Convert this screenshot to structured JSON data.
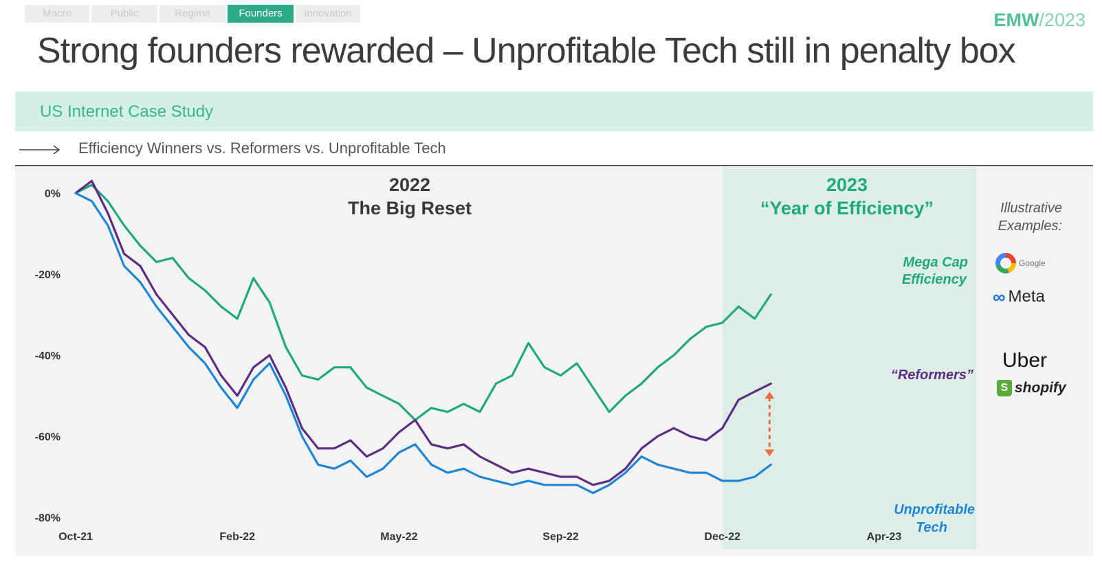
{
  "nav": {
    "tabs": [
      {
        "label": "Macro",
        "active": false
      },
      {
        "label": "Public",
        "active": false
      },
      {
        "label": "Regime",
        "active": false
      },
      {
        "label": "Founders",
        "active": true
      },
      {
        "label": "Innovation",
        "active": false
      }
    ]
  },
  "brand": {
    "name": "EMW",
    "year": "/2023"
  },
  "header": {
    "title": "Strong founders rewarded – Unprofitable Tech still in penalty box"
  },
  "banner": {
    "text": "US Internet Case Study"
  },
  "subtitle": {
    "text": "Efficiency Winners vs. Reformers vs. Unprofitable Tech"
  },
  "examples": {
    "label_line1": "Illustrative",
    "label_line2": "Examples:",
    "logos": [
      "Google",
      "Meta",
      "Uber",
      "shopify"
    ]
  },
  "colors": {
    "mega_cap": "#1fa97c",
    "reformers": "#5c2d82",
    "unprofitable": "#1f86d6",
    "highlight": "#ddeee6",
    "gap_arrow": "#ef6a3e"
  },
  "chart_data": {
    "type": "line",
    "x_ticks": [
      "Oct-21",
      "Feb-22",
      "May-22",
      "Sep-22",
      "Dec-22",
      "Apr-23"
    ],
    "y_ticks": [
      "0%",
      "-20%",
      "-40%",
      "-60%",
      "-80%"
    ],
    "ylim": [
      -80,
      0
    ],
    "periods": [
      {
        "year": "2022",
        "label": "The Big Reset",
        "highlight": false
      },
      {
        "year": "2023",
        "label": "“Year of Efficiency”",
        "highlight": true,
        "start_index": 4
      }
    ],
    "series": [
      {
        "key": "mega_cap",
        "name_line1": "Mega Cap",
        "name_line2": "Efficiency",
        "points": [
          [
            0,
            0
          ],
          [
            0.3,
            2
          ],
          [
            0.6,
            -2
          ],
          [
            0.9,
            -8
          ],
          [
            1.2,
            -13
          ],
          [
            1.5,
            -17
          ],
          [
            1.8,
            -16
          ],
          [
            2.1,
            -21
          ],
          [
            2.4,
            -24
          ],
          [
            2.7,
            -28
          ],
          [
            3.0,
            -31
          ],
          [
            3.3,
            -21
          ],
          [
            3.6,
            -27
          ],
          [
            3.9,
            -38
          ],
          [
            4.2,
            -45
          ],
          [
            4.5,
            -46
          ],
          [
            4.8,
            -43
          ],
          [
            5.1,
            -43
          ],
          [
            5.4,
            -48
          ],
          [
            5.7,
            -50
          ],
          [
            6.0,
            -52
          ],
          [
            6.3,
            -56
          ],
          [
            6.6,
            -53
          ],
          [
            6.9,
            -54
          ],
          [
            7.2,
            -52
          ],
          [
            7.5,
            -54
          ],
          [
            7.8,
            -47
          ],
          [
            8.1,
            -45
          ],
          [
            8.4,
            -37
          ],
          [
            8.7,
            -43
          ],
          [
            9.0,
            -45
          ],
          [
            9.3,
            -42
          ],
          [
            9.6,
            -48
          ],
          [
            9.9,
            -54
          ],
          [
            10.2,
            -50
          ],
          [
            10.5,
            -47
          ],
          [
            10.8,
            -43
          ],
          [
            11.1,
            -40
          ],
          [
            11.4,
            -36
          ],
          [
            11.7,
            -33
          ],
          [
            12.0,
            -32
          ],
          [
            12.3,
            -28
          ],
          [
            12.6,
            -31
          ],
          [
            12.9,
            -25
          ]
        ]
      },
      {
        "key": "reformers",
        "name_line1": "“Reformers”",
        "name_line2": "",
        "points": [
          [
            0,
            0
          ],
          [
            0.3,
            3
          ],
          [
            0.6,
            -5
          ],
          [
            0.9,
            -15
          ],
          [
            1.2,
            -18
          ],
          [
            1.5,
            -25
          ],
          [
            1.8,
            -30
          ],
          [
            2.1,
            -35
          ],
          [
            2.4,
            -38
          ],
          [
            2.7,
            -45
          ],
          [
            3.0,
            -50
          ],
          [
            3.3,
            -43
          ],
          [
            3.6,
            -40
          ],
          [
            3.9,
            -48
          ],
          [
            4.2,
            -58
          ],
          [
            4.5,
            -63
          ],
          [
            4.8,
            -63
          ],
          [
            5.1,
            -61
          ],
          [
            5.4,
            -65
          ],
          [
            5.7,
            -63
          ],
          [
            6.0,
            -59
          ],
          [
            6.3,
            -56
          ],
          [
            6.6,
            -62
          ],
          [
            6.9,
            -63
          ],
          [
            7.2,
            -62
          ],
          [
            7.5,
            -65
          ],
          [
            7.8,
            -67
          ],
          [
            8.1,
            -69
          ],
          [
            8.4,
            -68
          ],
          [
            8.7,
            -69
          ],
          [
            9.0,
            -70
          ],
          [
            9.3,
            -70
          ],
          [
            9.6,
            -72
          ],
          [
            9.9,
            -71
          ],
          [
            10.2,
            -68
          ],
          [
            10.5,
            -63
          ],
          [
            10.8,
            -60
          ],
          [
            11.1,
            -58
          ],
          [
            11.4,
            -60
          ],
          [
            11.7,
            -61
          ],
          [
            12.0,
            -58
          ],
          [
            12.3,
            -51
          ],
          [
            12.6,
            -49
          ],
          [
            12.9,
            -47
          ]
        ]
      },
      {
        "key": "unprofitable",
        "name_line1": "Unprofitable",
        "name_line2": "Tech",
        "points": [
          [
            0,
            0
          ],
          [
            0.3,
            -2
          ],
          [
            0.6,
            -8
          ],
          [
            0.9,
            -18
          ],
          [
            1.2,
            -22
          ],
          [
            1.5,
            -28
          ],
          [
            1.8,
            -33
          ],
          [
            2.1,
            -38
          ],
          [
            2.4,
            -42
          ],
          [
            2.7,
            -48
          ],
          [
            3.0,
            -53
          ],
          [
            3.3,
            -46
          ],
          [
            3.6,
            -42
          ],
          [
            3.9,
            -50
          ],
          [
            4.2,
            -60
          ],
          [
            4.5,
            -67
          ],
          [
            4.8,
            -68
          ],
          [
            5.1,
            -66
          ],
          [
            5.4,
            -70
          ],
          [
            5.7,
            -68
          ],
          [
            6.0,
            -64
          ],
          [
            6.3,
            -62
          ],
          [
            6.6,
            -67
          ],
          [
            6.9,
            -69
          ],
          [
            7.2,
            -68
          ],
          [
            7.5,
            -70
          ],
          [
            7.8,
            -71
          ],
          [
            8.1,
            -72
          ],
          [
            8.4,
            -71
          ],
          [
            8.7,
            -72
          ],
          [
            9.0,
            -72
          ],
          [
            9.3,
            -72
          ],
          [
            9.6,
            -74
          ],
          [
            9.9,
            -72
          ],
          [
            10.2,
            -69
          ],
          [
            10.5,
            -65
          ],
          [
            10.8,
            -67
          ],
          [
            11.1,
            -68
          ],
          [
            11.4,
            -69
          ],
          [
            11.7,
            -69
          ],
          [
            12.0,
            -71
          ],
          [
            12.3,
            -71
          ],
          [
            12.6,
            -70
          ],
          [
            12.9,
            -67
          ]
        ]
      }
    ],
    "gap_annotation": {
      "x": 12.9,
      "from": -47,
      "to": -67
    }
  }
}
